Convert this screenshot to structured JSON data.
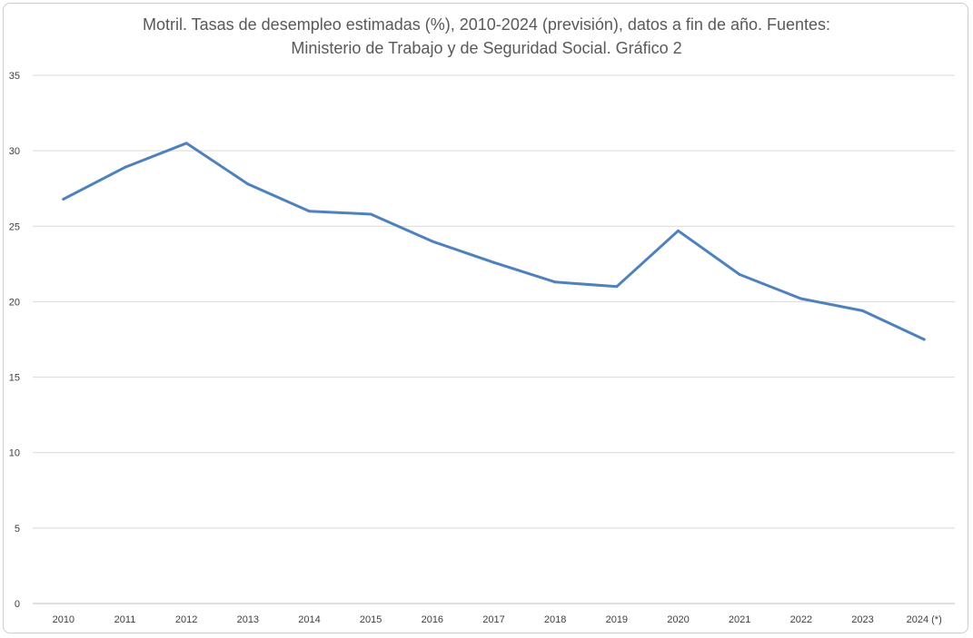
{
  "chart_data": {
    "type": "line",
    "title_lines": [
      "Motril. Tasas de desempleo estimadas (%), 2010-2024  (previsión), datos a fin de año. Fuentes:",
      "Ministerio de Trabajo y de Seguridad Social. Gráfico 2"
    ],
    "xlabel": "",
    "ylabel": "",
    "categories": [
      "2010",
      "2011",
      "2012",
      "2013",
      "2014",
      "2015",
      "2016",
      "2017",
      "2018",
      "2019",
      "2020",
      "2021",
      "2022",
      "2023",
      "2024 (*)"
    ],
    "series": [
      {
        "color": "#4f81bd",
        "values": [
          26.8,
          28.9,
          30.5,
          27.8,
          26.0,
          25.8,
          24.0,
          22.6,
          21.3,
          21.0,
          24.7,
          21.8,
          20.2,
          19.4,
          17.5
        ]
      }
    ],
    "ylim": [
      0,
      35
    ],
    "yticks": [
      0,
      5,
      10,
      15,
      20,
      25,
      30,
      35
    ],
    "grid": true,
    "legend": "none"
  }
}
